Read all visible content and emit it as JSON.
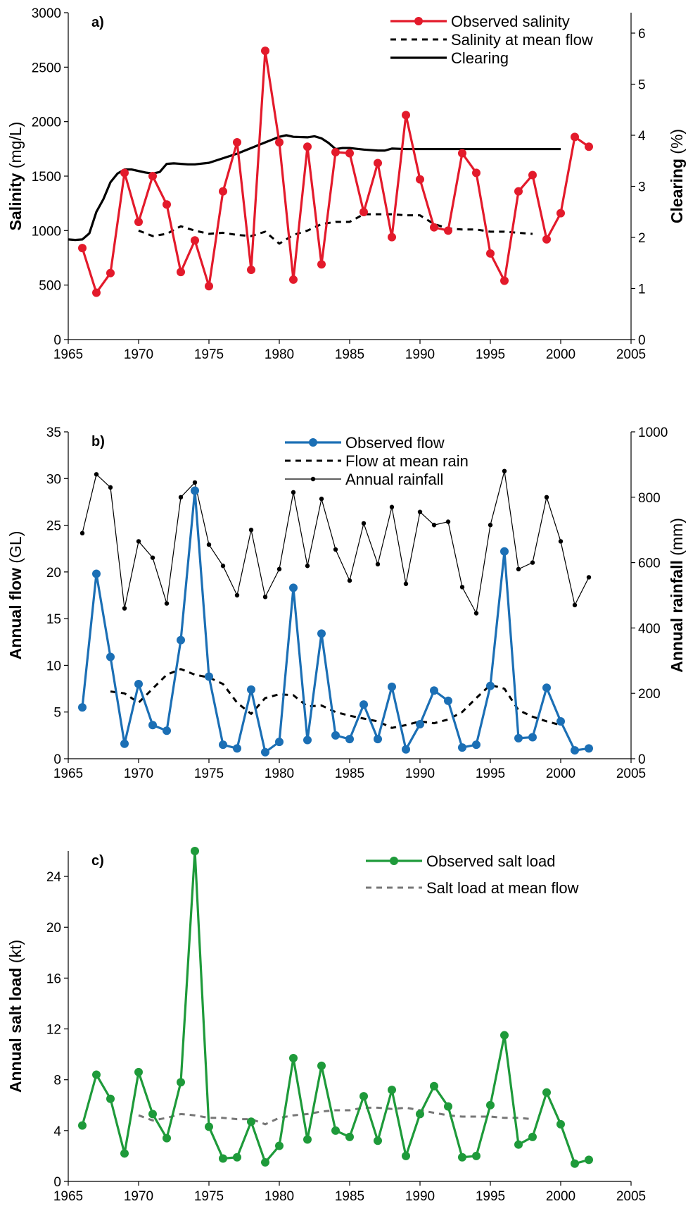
{
  "chart_data": [
    {
      "panel": "a)",
      "type": "line",
      "x_axis": {
        "ticks": [
          1965,
          1970,
          1975,
          1980,
          1985,
          1990,
          1995,
          2000,
          2005
        ],
        "range": [
          1965,
          2005
        ]
      },
      "y_left": {
        "label_bold": "Salinity",
        "label_unit": "(mg/L)",
        "ticks": [
          0,
          500,
          1000,
          1500,
          2000,
          2500,
          3000
        ],
        "range": [
          0,
          3000
        ]
      },
      "y_right": {
        "label_bold": "Clearing",
        "label_unit": "(%)",
        "ticks": [
          0,
          1,
          2,
          3,
          4,
          5,
          6
        ],
        "range": [
          0,
          6.4
        ]
      },
      "legend_position": "top-right",
      "series": [
        {
          "name": "Observed salinity",
          "axis": "left",
          "style": "line-markers",
          "color": "#e31a2b",
          "x": [
            1966,
            1967,
            1968,
            1969,
            1970,
            1971,
            1972,
            1973,
            1974,
            1975,
            1976,
            1977,
            1978,
            1979,
            1980,
            1981,
            1982,
            1983,
            1984,
            1985,
            1986,
            1987,
            1988,
            1989,
            1990,
            1991,
            1992,
            1993,
            1994,
            1995,
            1996,
            1997,
            1998,
            1999,
            2000,
            2001,
            2002
          ],
          "y": [
            840,
            430,
            610,
            1530,
            1080,
            1500,
            1240,
            620,
            910,
            490,
            1360,
            1810,
            640,
            2650,
            1810,
            550,
            1770,
            690,
            1720,
            1710,
            1170,
            1620,
            940,
            2060,
            1470,
            1030,
            1000,
            1710,
            1530,
            790,
            540,
            1360,
            1510,
            920,
            1160,
            1860,
            1770
          ]
        },
        {
          "name": "Salinity at mean flow",
          "axis": "left",
          "style": "dashed",
          "color": "#000000",
          "x": [
            1970,
            1971,
            1972,
            1973,
            1974,
            1975,
            1976,
            1977,
            1978,
            1979,
            1980,
            1981,
            1982,
            1983,
            1984,
            1985,
            1986,
            1987,
            1988,
            1989,
            1990,
            1991,
            1992,
            1993,
            1994,
            1995,
            1996,
            1997,
            1998
          ],
          "y": [
            1000,
            950,
            970,
            1040,
            1000,
            970,
            980,
            960,
            950,
            990,
            880,
            960,
            1000,
            1060,
            1080,
            1080,
            1150,
            1150,
            1150,
            1140,
            1140,
            1060,
            1020,
            1010,
            1010,
            990,
            990,
            980,
            970
          ]
        },
        {
          "name": "Clearing",
          "axis": "right",
          "style": "solid",
          "color": "#000000",
          "x": [
            1965,
            1965.5,
            1966,
            1966.5,
            1967,
            1967.5,
            1968,
            1968.5,
            1969,
            1969.5,
            1970,
            1970.5,
            1971,
            1971.5,
            1972,
            1972.5,
            1973,
            1973.5,
            1974,
            1975,
            1976,
            1977,
            1978,
            1979,
            1980,
            1980.5,
            1981,
            1982,
            1982.5,
            1983,
            1983.5,
            1984,
            1984.5,
            1985,
            1986,
            1987,
            1987.5,
            1988,
            1989,
            1990,
            1991,
            1992,
            1993,
            1994,
            1995,
            1996,
            1997,
            1998,
            1999,
            2000
          ],
          "y": [
            1.96,
            1.95,
            1.96,
            2.08,
            2.5,
            2.75,
            3.08,
            3.25,
            3.33,
            3.33,
            3.3,
            3.27,
            3.25,
            3.28,
            3.44,
            3.45,
            3.44,
            3.43,
            3.43,
            3.46,
            3.55,
            3.64,
            3.75,
            3.86,
            3.97,
            4.0,
            3.97,
            3.96,
            3.98,
            3.94,
            3.85,
            3.73,
            3.75,
            3.75,
            3.72,
            3.7,
            3.7,
            3.74,
            3.73,
            3.73,
            3.73,
            3.73,
            3.73,
            3.73,
            3.73,
            3.73,
            3.73,
            3.73,
            3.73,
            3.73
          ]
        }
      ]
    },
    {
      "panel": "b)",
      "type": "line",
      "x_axis": {
        "ticks": [
          1965,
          1970,
          1975,
          1980,
          1985,
          1990,
          1995,
          2000,
          2005
        ],
        "range": [
          1965,
          2005
        ]
      },
      "y_left": {
        "label_bold": "Annual flow",
        "label_unit": "(GL)",
        "ticks": [
          0,
          5,
          10,
          15,
          20,
          25,
          30,
          35
        ],
        "range": [
          0,
          35
        ]
      },
      "y_right": {
        "label_bold": "Annual rainfall",
        "label_unit": "(mm)",
        "ticks": [
          0,
          200,
          400,
          600,
          800,
          1000
        ],
        "range": [
          0,
          1000
        ]
      },
      "legend_position": "top-center",
      "series": [
        {
          "name": "Observed flow",
          "axis": "left",
          "style": "line-markers",
          "color": "#1b6fb5",
          "x": [
            1966,
            1967,
            1968,
            1969,
            1970,
            1971,
            1972,
            1973,
            1974,
            1975,
            1976,
            1977,
            1978,
            1979,
            1980,
            1981,
            1982,
            1983,
            1984,
            1985,
            1986,
            1987,
            1988,
            1989,
            1990,
            1991,
            1992,
            1993,
            1994,
            1995,
            1996,
            1997,
            1998,
            1999,
            2000,
            2001,
            2002
          ],
          "y": [
            5.5,
            19.8,
            10.9,
            1.6,
            8.0,
            3.6,
            3.0,
            12.7,
            28.7,
            8.8,
            1.5,
            1.1,
            7.4,
            0.7,
            1.8,
            18.3,
            2.0,
            13.4,
            2.5,
            2.1,
            5.8,
            2.1,
            7.7,
            1.0,
            3.7,
            7.3,
            6.2,
            1.2,
            1.5,
            7.8,
            22.2,
            2.2,
            2.3,
            7.6,
            4.0,
            0.9,
            1.1
          ]
        },
        {
          "name": "Flow at mean rain",
          "axis": "left",
          "style": "dashed",
          "color": "#000000",
          "x": [
            1968,
            1969,
            1970,
            1971,
            1972,
            1973,
            1974,
            1975,
            1976,
            1977,
            1978,
            1979,
            1980,
            1981,
            1982,
            1983,
            1984,
            1985,
            1986,
            1987,
            1988,
            1989,
            1990,
            1991,
            1992,
            1993,
            1994,
            1995,
            1996,
            1997,
            1998,
            1999,
            2000
          ],
          "y": [
            7.2,
            7.0,
            6.0,
            7.5,
            9.0,
            9.6,
            9.0,
            8.7,
            8.0,
            6.0,
            4.8,
            6.5,
            6.9,
            6.8,
            5.6,
            5.7,
            5.0,
            4.6,
            4.3,
            4.0,
            3.3,
            3.6,
            4.0,
            3.8,
            4.2,
            5.0,
            6.5,
            7.9,
            7.5,
            5.2,
            4.5,
            4.0,
            3.6
          ]
        },
        {
          "name": "Annual rainfall",
          "axis": "right",
          "style": "thin-line-dots",
          "color": "#000000",
          "x": [
            1966,
            1967,
            1968,
            1969,
            1970,
            1971,
            1972,
            1973,
            1974,
            1975,
            1976,
            1977,
            1978,
            1979,
            1980,
            1981,
            1982,
            1983,
            1984,
            1985,
            1986,
            1987,
            1988,
            1989,
            1990,
            1991,
            1992,
            1993,
            1994,
            1995,
            1996,
            1997,
            1998,
            1999,
            2000,
            2001,
            2002
          ],
          "y": [
            690,
            870,
            830,
            460,
            665,
            615,
            475,
            800,
            845,
            655,
            590,
            500,
            700,
            495,
            580,
            815,
            590,
            795,
            640,
            545,
            720,
            595,
            770,
            535,
            755,
            715,
            725,
            525,
            445,
            715,
            880,
            580,
            600,
            800,
            665,
            470,
            555
          ]
        }
      ]
    },
    {
      "panel": "c)",
      "type": "line",
      "x_axis": {
        "ticks": [
          1965,
          1970,
          1975,
          1980,
          1985,
          1990,
          1995,
          2000,
          2005
        ],
        "range": [
          1965,
          2005
        ]
      },
      "y_left": {
        "label_bold": "Annual salt load",
        "label_unit": "(kt)",
        "ticks": [
          0,
          4,
          8,
          12,
          16,
          20,
          24
        ],
        "range": [
          0,
          26
        ]
      },
      "legend_position": "top-right",
      "series": [
        {
          "name": "Observed salt load",
          "axis": "left",
          "style": "line-markers",
          "color": "#1e9a3a",
          "x": [
            1966,
            1967,
            1968,
            1969,
            1970,
            1971,
            1972,
            1973,
            1974,
            1975,
            1976,
            1977,
            1978,
            1979,
            1980,
            1981,
            1982,
            1983,
            1984,
            1985,
            1986,
            1987,
            1988,
            1989,
            1990,
            1991,
            1992,
            1993,
            1994,
            1995,
            1996,
            1997,
            1998,
            1999,
            2000,
            2001,
            2002
          ],
          "y": [
            4.4,
            8.4,
            6.5,
            2.2,
            8.6,
            5.3,
            3.4,
            7.8,
            26.0,
            4.3,
            1.8,
            1.9,
            4.7,
            1.5,
            2.8,
            9.7,
            3.3,
            9.1,
            4.0,
            3.5,
            6.7,
            3.2,
            7.2,
            2.0,
            5.3,
            7.5,
            5.9,
            1.9,
            2.0,
            6.0,
            11.5,
            2.9,
            3.5,
            7.0,
            4.5,
            1.4,
            1.7
          ]
        },
        {
          "name": "Salt load at mean flow",
          "axis": "left",
          "style": "dashed",
          "color": "#777777",
          "x": [
            1970,
            1971,
            1972,
            1973,
            1974,
            1975,
            1976,
            1977,
            1978,
            1979,
            1980,
            1981,
            1982,
            1983,
            1984,
            1985,
            1986,
            1987,
            1988,
            1989,
            1990,
            1991,
            1992,
            1993,
            1994,
            1995,
            1996,
            1997,
            1998
          ],
          "y": [
            5.2,
            4.8,
            5.0,
            5.3,
            5.2,
            5.0,
            5.0,
            4.9,
            4.9,
            4.5,
            5.0,
            5.2,
            5.3,
            5.5,
            5.6,
            5.6,
            5.8,
            5.8,
            5.7,
            5.8,
            5.6,
            5.4,
            5.2,
            5.1,
            5.1,
            5.1,
            5.0,
            5.0,
            4.9
          ]
        }
      ]
    }
  ]
}
